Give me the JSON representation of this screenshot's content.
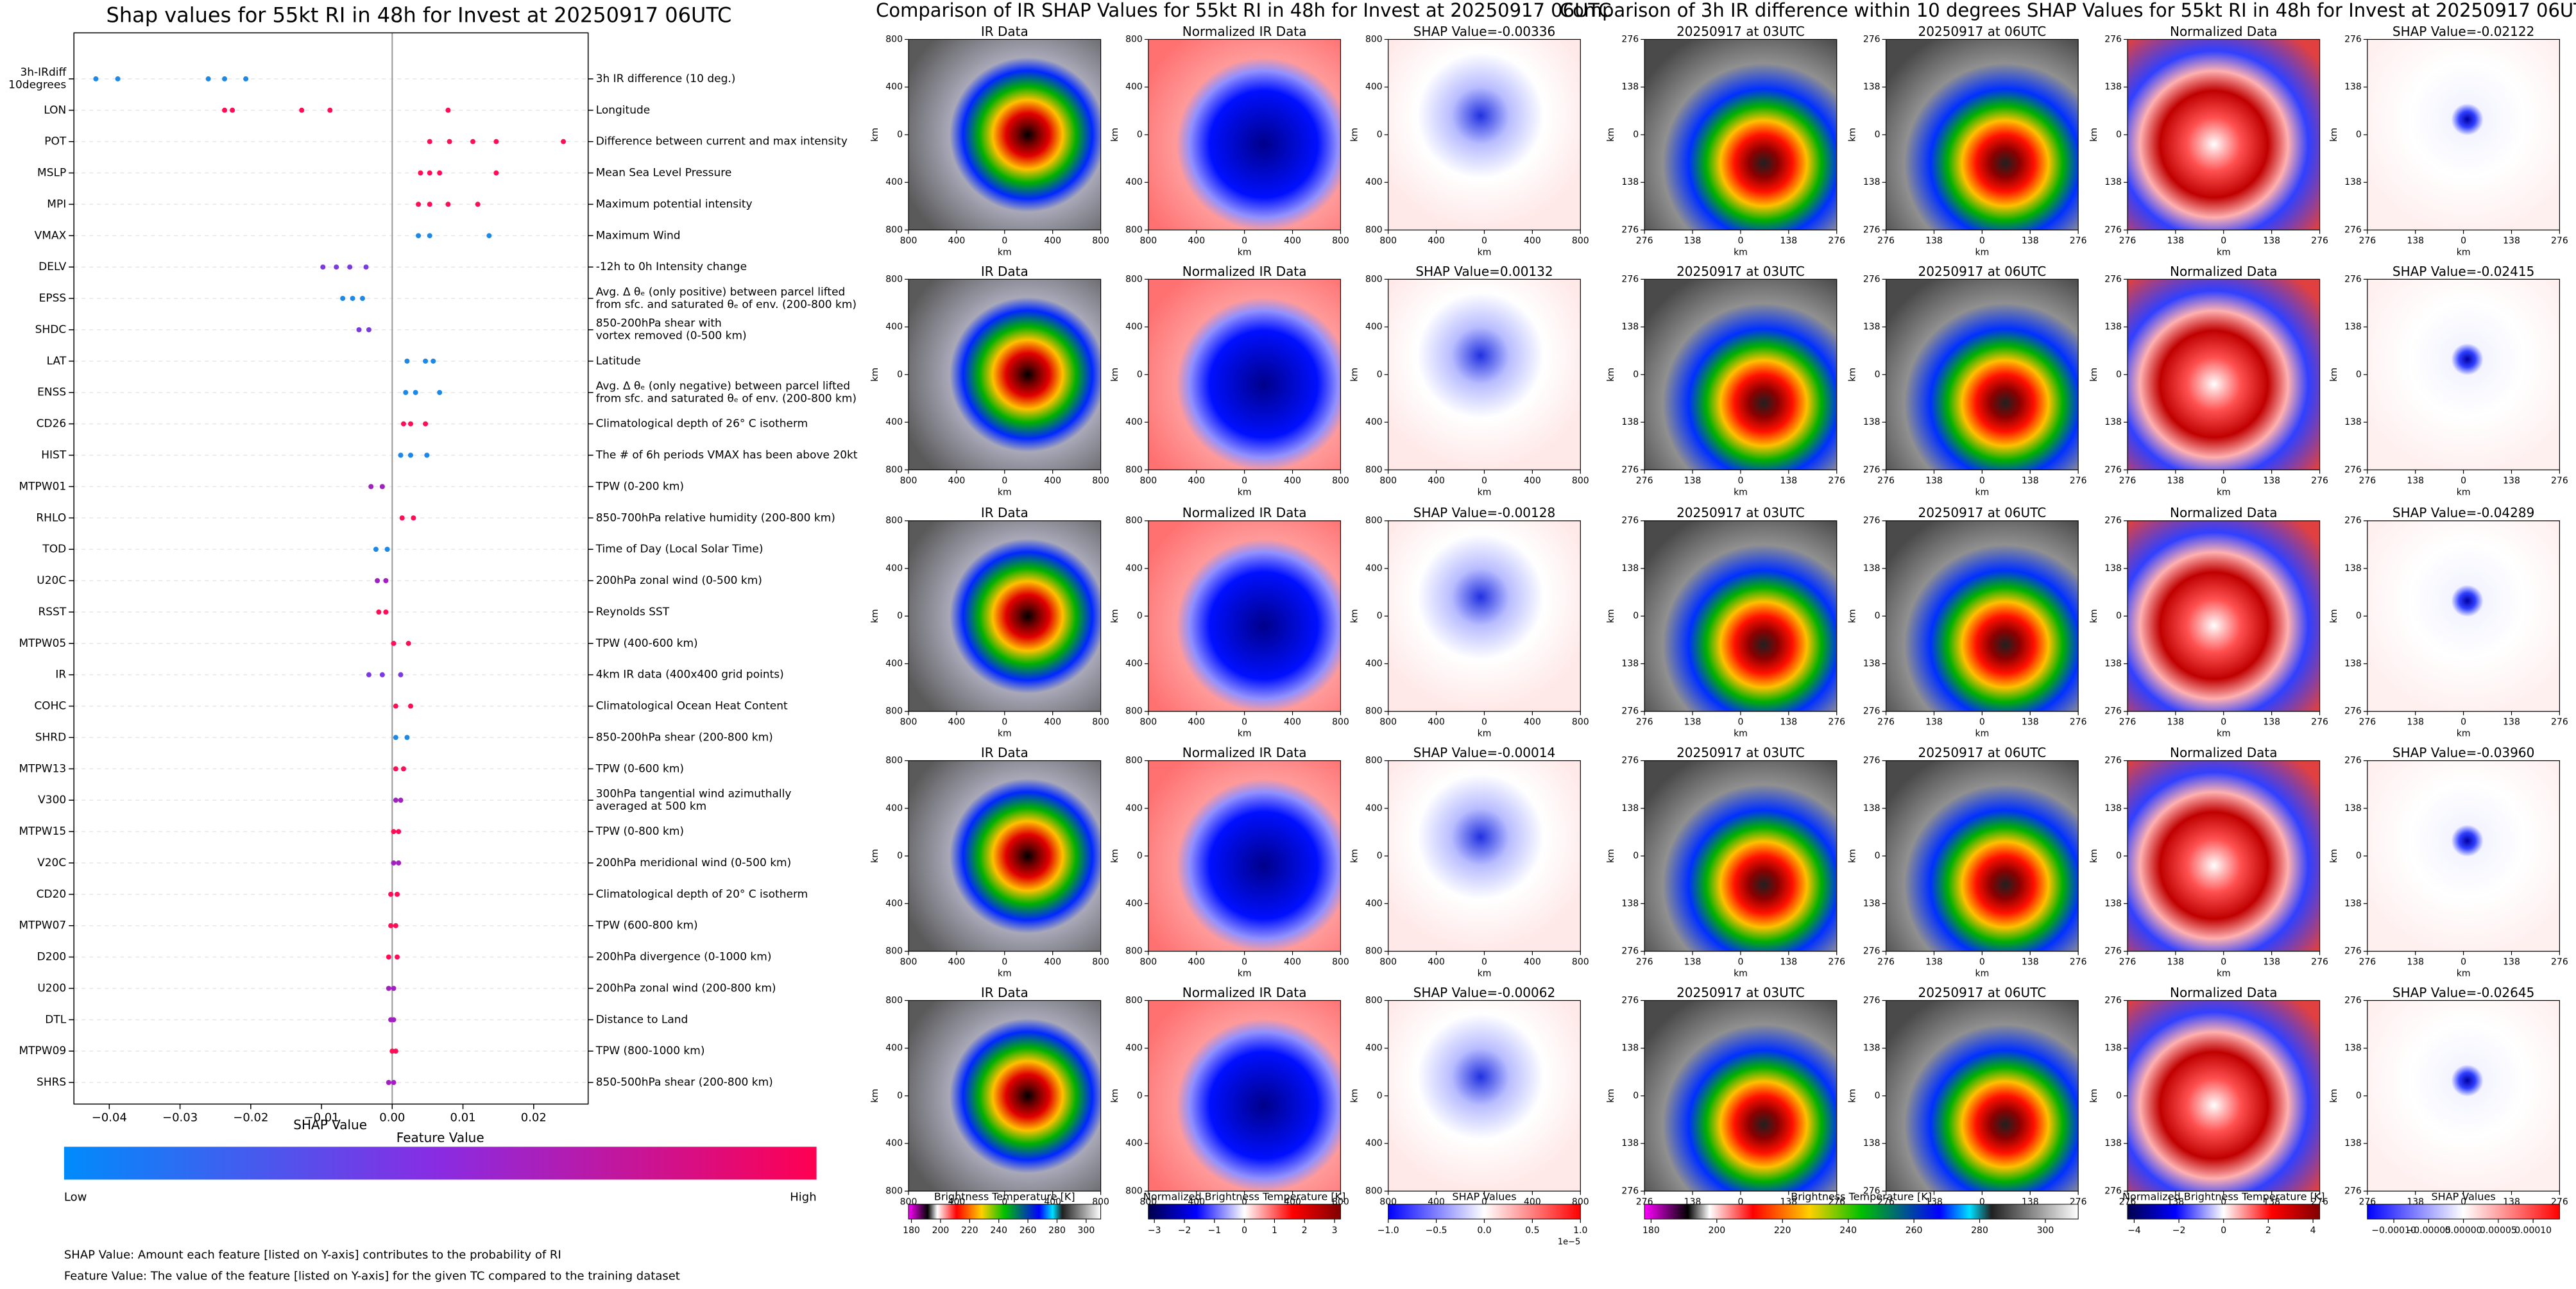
{
  "chart_data": {
    "type": "scatter",
    "title": "Shap values for 55kt RI in 48h for Invest at 20250917 06UTC",
    "x_label": "SHAP Value",
    "xlim": [
      -0.045,
      0.0277
    ],
    "xticks": [
      {
        "value": -0.04,
        "label": "−0.04"
      },
      {
        "value": -0.03,
        "label": "−0.03"
      },
      {
        "value": -0.02,
        "label": "−0.02"
      },
      {
        "value": -0.01,
        "label": "−0.01"
      },
      {
        "value": 0,
        "label": "0.00"
      },
      0.01,
      0.02
    ],
    "features": [
      {
        "name": "3h-IRdiff\n10degrees",
        "description": "3h IR difference (10 deg.)",
        "color": "#1e88e5",
        "values": [
          -0.0419,
          -0.0388,
          -0.026,
          -0.0237,
          -0.0207
        ]
      },
      {
        "name": "LON",
        "description": "Longitude",
        "color": "#ff0d57",
        "values": [
          -0.0237,
          -0.0226,
          -0.0128,
          -0.0088,
          0.0079
        ]
      },
      {
        "name": "POT",
        "description": "Difference between current and max intensity",
        "color": "#ff0d57",
        "values": [
          0.0053,
          0.0081,
          0.0114,
          0.0147,
          0.0242
        ]
      },
      {
        "name": "MSLP",
        "description": "Mean Sea Level Pressure",
        "color": "#ff0d57",
        "values": [
          0.004,
          0.0053,
          0.0067,
          0.0147
        ]
      },
      {
        "name": "MPI",
        "description": "Maximum potential intensity",
        "color": "#ff0d57",
        "values": [
          0.0037,
          0.0053,
          0.0079,
          0.0121
        ]
      },
      {
        "name": "VMAX",
        "description": "Maximum Wind",
        "color": "#1e88e5",
        "values": [
          0.0037,
          0.0053,
          0.0137
        ]
      },
      {
        "name": "DELV",
        "description": "-12h to 0h Intensity change",
        "color": "#7b3ae0",
        "values": [
          -0.0098,
          -0.0079,
          -0.006,
          -0.0037
        ]
      },
      {
        "name": "EPSS",
        "description": "Avg. Δ θₑ (only positive) between parcel lifted\nfrom sfc. and saturated θₑ of env. (200-800 km)",
        "color": "#1e88e5",
        "values": [
          -0.007,
          -0.0056,
          -0.0042
        ]
      },
      {
        "name": "SHDC",
        "description": "850-200hPa shear with\nvortex removed (0-500 km)",
        "color": "#7b3ae0",
        "values": [
          -0.0047,
          -0.0033
        ]
      },
      {
        "name": "LAT",
        "description": "Latitude",
        "color": "#1e88e5",
        "values": [
          0.0021,
          0.0047,
          0.0058
        ]
      },
      {
        "name": "ENSS",
        "description": "Avg. Δ θₑ (only negative) between parcel lifted\nfrom sfc. and saturated θₑ of env. (200-800 km)",
        "color": "#1e88e5",
        "values": [
          0.0019,
          0.0033,
          0.0067
        ]
      },
      {
        "name": "CD26",
        "description": "Climatological depth of 26° C isotherm",
        "color": "#ff0d57",
        "values": [
          0.0016,
          0.0026,
          0.0047
        ]
      },
      {
        "name": "HIST",
        "description": "The # of 6h periods VMAX has been above 20kt",
        "color": "#1e88e5",
        "values": [
          0.0012,
          0.0026,
          0.0049
        ]
      },
      {
        "name": "MTPW01",
        "description": "TPW (0-200 km)",
        "color": "#a020c0",
        "values": [
          -0.003,
          -0.0014
        ]
      },
      {
        "name": "RHLO",
        "description": "850-700hPa relative humidity (200-800 km)",
        "color": "#ff0d57",
        "values": [
          0.0014,
          0.003
        ]
      },
      {
        "name": "TOD",
        "description": "Time of Day (Local Solar Time)",
        "color": "#1e88e5",
        "values": [
          -0.0023,
          -0.0007
        ]
      },
      {
        "name": "U20C",
        "description": "200hPa zonal wind (0-500 km)",
        "color": "#a020c0",
        "values": [
          -0.0021,
          -0.0009
        ]
      },
      {
        "name": "RSST",
        "description": "Reynolds SST",
        "color": "#ff0d57",
        "values": [
          -0.0019,
          -0.0009
        ]
      },
      {
        "name": "MTPW05",
        "description": "TPW (400-600 km)",
        "color": "#ff0d57",
        "values": [
          0.0002,
          0.0023
        ]
      },
      {
        "name": "IR",
        "description": "4km IR data (400x400 grid points)",
        "color": "#7b3ae0",
        "values": [
          -0.0033,
          -0.0014,
          0.0012
        ]
      },
      {
        "name": "COHC",
        "description": "Climatological Ocean Heat Content",
        "color": "#ff0d57",
        "values": [
          0.0005,
          0.0026
        ]
      },
      {
        "name": "SHRD",
        "description": "850-200hPa shear (200-800 km)",
        "color": "#1e88e5",
        "values": [
          0.0005,
          0.0021
        ]
      },
      {
        "name": "MTPW13",
        "description": "TPW (0-600 km)",
        "color": "#ff0d57",
        "values": [
          0.0005,
          0.0016
        ]
      },
      {
        "name": "V300",
        "description": "300hPa tangential wind azimuthally\naveraged at 500 km",
        "color": "#a020c0",
        "values": [
          0.0005,
          0.0012
        ]
      },
      {
        "name": "MTPW15",
        "description": "TPW (0-800 km)",
        "color": "#ff0d57",
        "values": [
          0.0002,
          0.0009
        ]
      },
      {
        "name": "V20C",
        "description": "200hPa meridional wind (0-500 km)",
        "color": "#a020c0",
        "values": [
          0.0002,
          0.0009
        ]
      },
      {
        "name": "CD20",
        "description": "Climatological depth of 20° C isotherm",
        "color": "#ff0d57",
        "values": [
          -0.0002,
          0.0007
        ]
      },
      {
        "name": "MTPW07",
        "description": "TPW (600-800 km)",
        "color": "#ff0d57",
        "values": [
          -0.0002,
          0.0005
        ]
      },
      {
        "name": "D200",
        "description": "200hPa divergence (0-1000 km)",
        "color": "#ff0d57",
        "values": [
          -0.0005,
          0.0007
        ]
      },
      {
        "name": "U200",
        "description": "200hPa zonal wind (200-800 km)",
        "color": "#a020c0",
        "values": [
          -0.0005,
          0.0002
        ]
      },
      {
        "name": "DTL",
        "description": "Distance to Land",
        "color": "#a020c0",
        "values": [
          -0.0002,
          0.0002
        ]
      },
      {
        "name": "MTPW09",
        "description": "TPW (800-1000 km)",
        "color": "#ff0d57",
        "values": [
          0,
          0.0005
        ]
      },
      {
        "name": "SHRS",
        "description": "850-500hPa shear (200-800 km)",
        "color": "#a020c0",
        "values": [
          -0.0005,
          0.0002
        ]
      }
    ],
    "colorbar": {
      "title": "Feature Value",
      "low": "Low",
      "high": "High",
      "colors": [
        "#008bfb",
        "#8a2be2",
        "#ff0052"
      ]
    },
    "notes": [
      "SHAP Value: Amount each feature [listed on Y-axis] contributes to the probability of RI",
      "Feature Value: The value of the feature [listed on Y-axis] for the given TC compared to the training dataset"
    ]
  },
  "image_groups": [
    {
      "title": "Comparison of IR SHAP Values for 55kt RI in 48h for Invest at 20250917 06UTC",
      "axis_label": "km",
      "lim": [
        -800,
        800
      ],
      "ticks": [
        {
          "value": -800,
          "label": "800"
        },
        {
          "value": -400,
          "label": "400"
        },
        0,
        400,
        800
      ],
      "panel_titles": [
        [
          "IR Data",
          "Normalized IR Data",
          "SHAP Value=-0.00336"
        ],
        [
          "IR Data",
          "Normalized IR Data",
          "SHAP Value=0.00132"
        ],
        [
          "IR Data",
          "Normalized IR Data",
          "SHAP Value=-0.00128"
        ],
        [
          "IR Data",
          "Normalized IR Data",
          "SHAP Value=-0.00014"
        ],
        [
          "IR Data",
          "Normalized IR Data",
          "SHAP Value=-0.00062"
        ]
      ],
      "colorbars": [
        {
          "label": "Brightness Temperature [K]",
          "lim": [
            178,
            310
          ],
          "ticks": [
            180,
            200,
            220,
            240,
            260,
            280,
            300
          ]
        },
        {
          "label": "Normalized Brightness Temperature [K]",
          "lim": [
            -3.2,
            3.2
          ],
          "ticks": [
            {
              "value": -3,
              "label": "−3"
            },
            {
              "value": -2,
              "label": "−2"
            },
            {
              "value": -1,
              "label": "−1"
            },
            0,
            1,
            2,
            3
          ]
        },
        {
          "label": "SHAP Values",
          "lim": [
            -1,
            1
          ],
          "ticks": [
            {
              "value": -1,
              "label": "−1.0"
            },
            {
              "value": -0.5,
              "label": "−0.5"
            },
            {
              "value": 0,
              "label": "0.0"
            },
            0.5,
            {
              "value": 1,
              "label": "1.0"
            }
          ],
          "offset_text": "1e−5"
        }
      ]
    },
    {
      "title": "Comparison of 3h IR difference within 10 degrees SHAP Values for 55kt RI in 48h for Invest at 20250917 06UTC",
      "axis_label": "km",
      "lim": [
        -276,
        276
      ],
      "ticks": [
        {
          "value": -276,
          "label": "276"
        },
        {
          "value": -138,
          "label": "138"
        },
        0,
        138,
        276
      ],
      "panel_titles": [
        [
          "20250917 at 03UTC",
          "20250917 at 06UTC",
          "Normalized Data",
          "SHAP Value=-0.02122"
        ],
        [
          "20250917 at 03UTC",
          "20250917 at 06UTC",
          "Normalized Data",
          "SHAP Value=-0.02415"
        ],
        [
          "20250917 at 03UTC",
          "20250917 at 06UTC",
          "Normalized Data",
          "SHAP Value=-0.04289"
        ],
        [
          "20250917 at 03UTC",
          "20250917 at 06UTC",
          "Normalized Data",
          "SHAP Value=-0.03960"
        ],
        [
          "20250917 at 03UTC",
          "20250917 at 06UTC",
          "Normalized Data",
          "SHAP Value=-0.02645"
        ]
      ],
      "colorbars": [
        {
          "label": "Brightness Temperature [K]",
          "lim": [
            178,
            310
          ],
          "ticks": [
            180,
            200,
            220,
            240,
            260,
            280,
            300
          ]
        },
        {
          "label": "Normalized Brightness Temperature [K]",
          "lim": [
            -4.3,
            4.3
          ],
          "ticks": [
            {
              "value": -4,
              "label": "−4"
            },
            {
              "value": -2,
              "label": "−2"
            },
            0,
            2,
            4
          ]
        },
        {
          "label": "SHAP Values",
          "lim": [
            -0.000138,
            0.000138
          ],
          "ticks": [
            {
              "value": -0.0001,
              "label": "−0.00010"
            },
            {
              "value": -5e-05,
              "label": "−0.00005"
            },
            {
              "value": 0,
              "label": "0.00000"
            },
            5e-05,
            {
              "value": 0.0001,
              "label": "0.00010"
            }
          ]
        }
      ]
    }
  ]
}
